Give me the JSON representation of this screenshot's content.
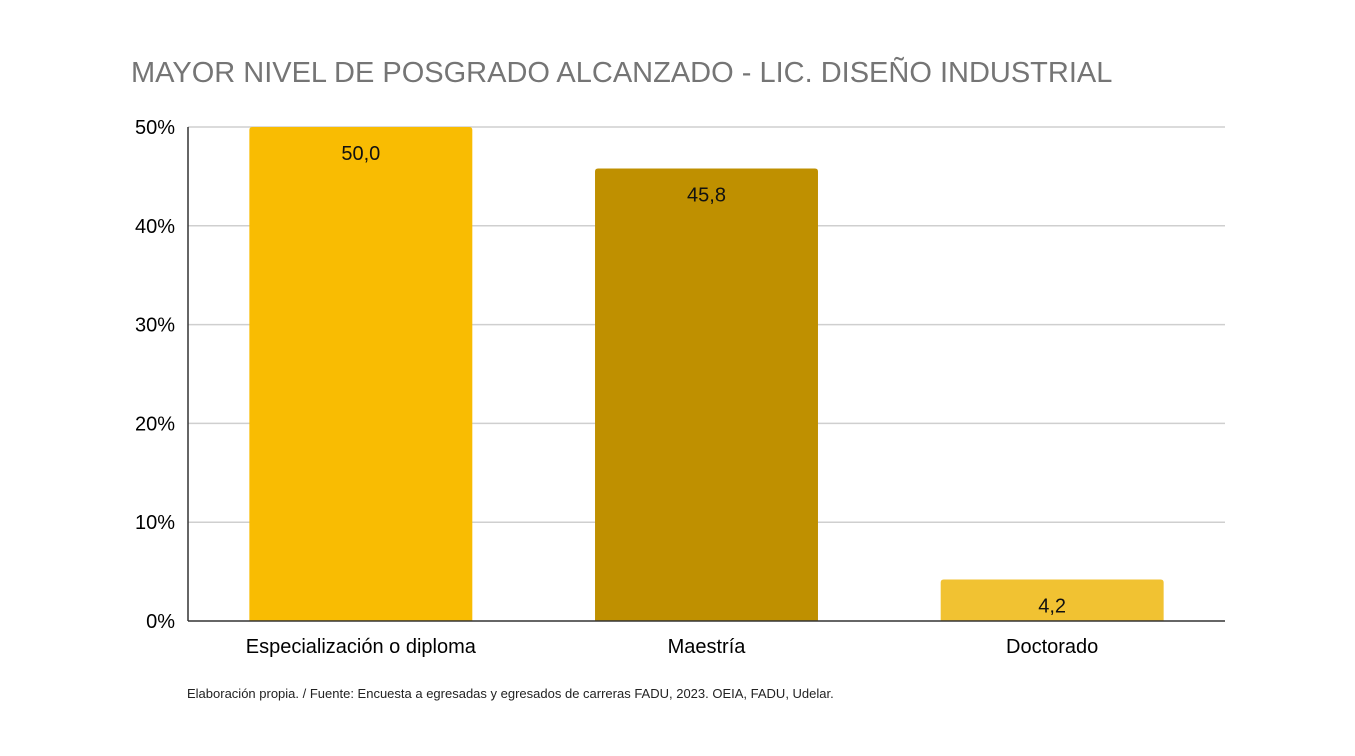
{
  "chart_data": {
    "type": "bar",
    "title": "MAYOR NIVEL DE POSGRADO ALCANZADO - LIC. DISEÑO INDUSTRIAL",
    "categories": [
      "Especialización o diploma",
      "Maestría",
      "Doctorado"
    ],
    "values": [
      50.0,
      45.8,
      4.2
    ],
    "data_labels": [
      "50,0",
      "45,8",
      "4,2"
    ],
    "bar_colors": [
      "#f9bc02",
      "#bf9000",
      "#f1c232"
    ],
    "y_ticks": [
      "0%",
      "10%",
      "20%",
      "30%",
      "40%",
      "50%"
    ],
    "ylim": [
      0,
      50
    ],
    "xlabel": "",
    "ylabel": "",
    "grid": true,
    "legend": "none"
  },
  "source_note": "Elaboración propia. / Fuente: Encuesta a egresadas y egresados de carreras FADU, 2023. OEIA, FADU, Udelar."
}
